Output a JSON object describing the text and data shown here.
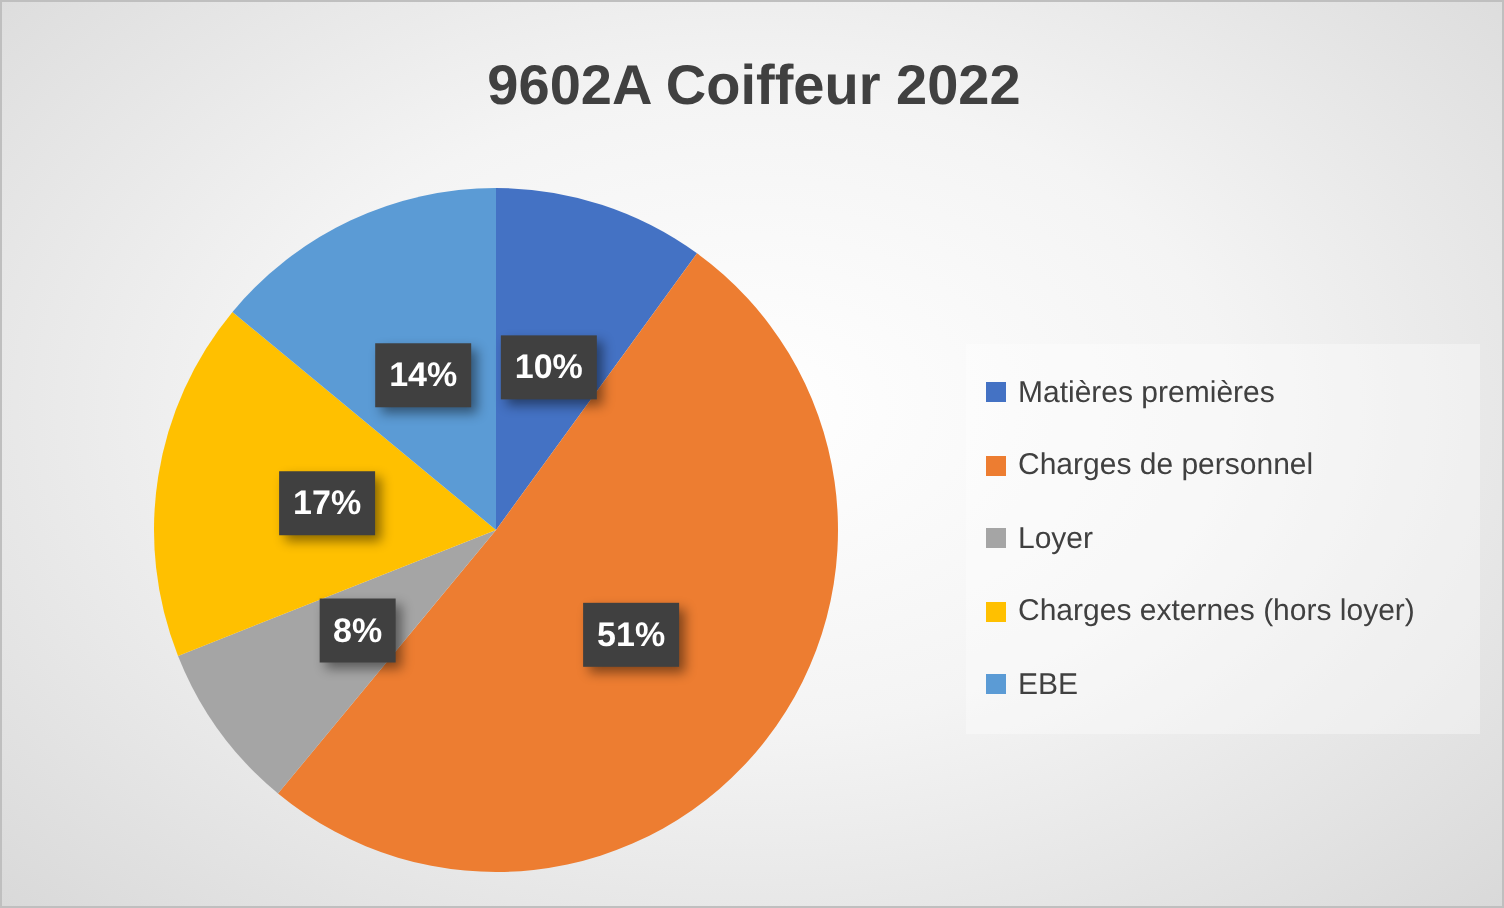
{
  "chart_data": {
    "type": "pie",
    "title": "9602A Coiffeur 2022",
    "categories": [
      "Matières premières",
      "Charges de personnel",
      "Loyer",
      "Charges externes (hors loyer)",
      "EBE"
    ],
    "values": [
      10,
      51,
      8,
      17,
      14
    ],
    "colors": [
      "#4472c4",
      "#ed7d31",
      "#a5a5a5",
      "#ffc000",
      "#5b9bd5"
    ],
    "value_labels": [
      "10%",
      "51%",
      "8%",
      "17%",
      "14%"
    ],
    "legend": "right"
  }
}
